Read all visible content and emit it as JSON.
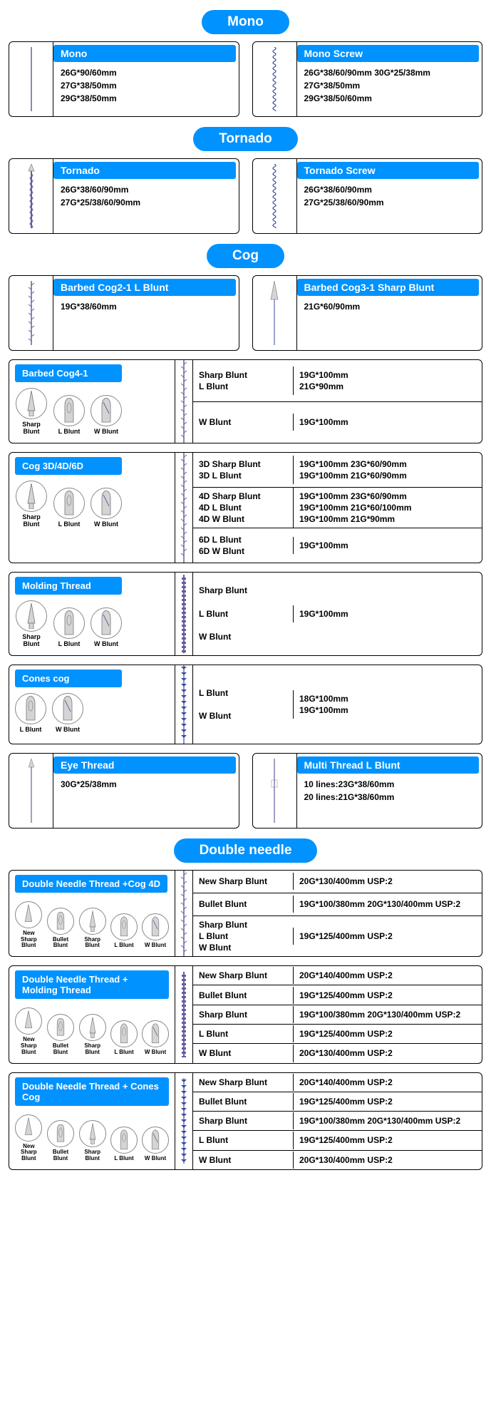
{
  "colors": {
    "primary": "#0092ff",
    "border": "#000000",
    "tipstroke": "#888",
    "thread_purple": "#6b5b9e",
    "thread_blue": "#3b4a9c",
    "tip_fill": "#d4d4d4"
  },
  "sections": {
    "mono": {
      "title": "Mono",
      "cards": [
        {
          "title": "Mono",
          "specs": [
            "26G*90/60mm",
            "27G*38/50mm",
            "29G*38/50mm"
          ],
          "thread": "mono"
        },
        {
          "title": "Mono Screw",
          "specs": [
            "26G*38/60/90mm 30G*25/38mm",
            "27G*38/50mm",
            "29G*38/50/60mm"
          ],
          "thread": "screw"
        }
      ]
    },
    "tornado": {
      "title": "Tornado",
      "cards": [
        {
          "title": "Tornado",
          "specs": [
            "26G*38/60/90mm",
            "27G*25/38/60/90mm"
          ],
          "thread": "tornado"
        },
        {
          "title": "Tornado Screw",
          "specs": [
            "26G*38/60/90mm",
            "27G*25/38/60/90mm"
          ],
          "thread": "screw"
        }
      ]
    },
    "cog": {
      "title": "Cog",
      "small_cards": [
        {
          "title": "Barbed Cog2-1 L Blunt",
          "specs": [
            "19G*38/60mm"
          ],
          "thread": "barb"
        },
        {
          "title": "Barbed Cog3-1 Sharp Blunt",
          "specs": [
            "21G*60/90mm"
          ],
          "thread": "needle_sharp"
        }
      ],
      "wide": [
        {
          "title": "Barbed Cog4-1",
          "tips": [
            "Sharp Blunt",
            "L Blunt",
            "W Blunt"
          ],
          "thread": "barb",
          "rows": [
            {
              "label": "Sharp Blunt\nL Blunt",
              "val": "19G*100mm\n21G*90mm"
            },
            {
              "label": "W Blunt",
              "val": "19G*100mm"
            }
          ]
        },
        {
          "title": "Cog 3D/4D/6D",
          "tips": [
            "Sharp Blunt",
            "L Blunt",
            "W Blunt"
          ],
          "thread": "barb2",
          "rows": [
            {
              "label": "3D Sharp Blunt\n3D L Blunt",
              "val": "19G*100mm 23G*60/90mm\n19G*100mm 21G*60/90mm"
            },
            {
              "label": "4D Sharp Blunt\n4D L Blunt\n4D W Blunt",
              "val": "19G*100mm 23G*60/90mm\n19G*100mm 21G*60/100mm\n19G*100mm 21G*90mm"
            },
            {
              "label": "6D L Blunt\n6D W Blunt",
              "val": "19G*100mm"
            }
          ]
        },
        {
          "title": "Molding Thread",
          "tips": [
            "Sharp Blunt",
            "L Blunt",
            "W Blunt"
          ],
          "thread": "molding",
          "rows": [
            {
              "label": "Sharp Blunt\n\nL Blunt\n\nW Blunt",
              "val": "19G*100mm"
            }
          ]
        },
        {
          "title": "Cones cog",
          "tips": [
            "L Blunt",
            "W Blunt"
          ],
          "thread": "cones",
          "rows": [
            {
              "label": "L Blunt\n\nW Blunt",
              "val": "18G*100mm\n19G*100mm"
            }
          ]
        }
      ],
      "small_cards_2": [
        {
          "title": "Eye Thread",
          "specs": [
            "30G*25/38mm"
          ],
          "thread": "eye"
        },
        {
          "title": "Multi Thread L Blunt",
          "specs": [
            "10 lines:23G*38/60mm",
            "20 lines:21G*38/60mm"
          ],
          "thread": "multi"
        }
      ]
    },
    "double": {
      "title": "Double needle",
      "wide": [
        {
          "title": "Double Needle Thread +Cog 4D",
          "tips": [
            "New Sharp Blunt",
            "Bullet Blunt",
            "Sharp Blunt",
            "L Blunt",
            "W Blunt"
          ],
          "thread": "barb2",
          "rows": [
            {
              "label": "New Sharp Blunt",
              "val": "20G*130/400mm USP:2"
            },
            {
              "label": "Bullet Blunt",
              "val": "19G*100/380mm   20G*130/400mm USP:2"
            },
            {
              "label": "Sharp Blunt\nL Blunt\nW Blunt",
              "val": "19G*125/400mm USP:2"
            }
          ]
        },
        {
          "title": "Double Needle Thread + Molding Thread",
          "tips": [
            "New Sharp Blunt",
            "Bullet Blunt",
            "Sharp Blunt",
            "L Blunt",
            "W Blunt"
          ],
          "thread": "molding",
          "rows": [
            {
              "label": "New Sharp Blunt",
              "val": "20G*140/400mm USP:2"
            },
            {
              "label": "Bullet Blunt",
              "val": "19G*125/400mm USP:2"
            },
            {
              "label": "Sharp Blunt",
              "val": "19G*100/380mm   20G*130/400mm USP:2"
            },
            {
              "label": "L Blunt",
              "val": "19G*125/400mm USP:2"
            },
            {
              "label": "W Blunt",
              "val": "20G*130/400mm USP:2"
            }
          ]
        },
        {
          "title": "Double Needle Thread + Cones Cog",
          "tips": [
            "New Sharp Blunt",
            "Bullet Blunt",
            "Sharp Blunt",
            "L Blunt",
            "W Blunt"
          ],
          "thread": "cones",
          "rows": [
            {
              "label": "New Sharp Blunt",
              "val": "20G*140/400mm USP:2"
            },
            {
              "label": "Bullet Blunt",
              "val": "19G*125/400mm USP:2"
            },
            {
              "label": "Sharp Blunt",
              "val": "19G*100/380mm   20G*130/400mm USP:2"
            },
            {
              "label": "L Blunt",
              "val": "19G*125/400mm USP:2"
            },
            {
              "label": "W Blunt",
              "val": "20G*130/400mm USP:2"
            }
          ]
        }
      ]
    }
  }
}
